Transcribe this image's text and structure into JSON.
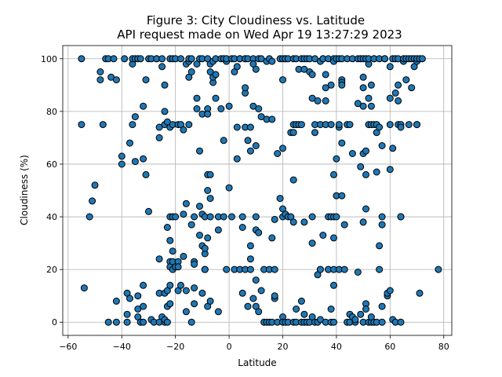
{
  "chart_data": {
    "type": "scatter",
    "title_line1": "Figure 3: City Cloudiness vs. Latitude",
    "title_line2": "API request made on Wed Apr 19 13:27:29 2023",
    "xlabel": "Latitude",
    "ylabel": "Cloudiness (%)",
    "xlim": [
      -62,
      83
    ],
    "ylim": [
      -5,
      105
    ],
    "xticks": [
      -60,
      -40,
      -20,
      0,
      20,
      40,
      60,
      80
    ],
    "yticks": [
      0,
      20,
      40,
      60,
      80,
      100
    ],
    "grid": true,
    "marker_color": "#1f77b4",
    "marker_edge": "#000000",
    "points": [
      [
        -55,
        100
      ],
      [
        -55,
        75
      ],
      [
        -54,
        13
      ],
      [
        -52,
        40
      ],
      [
        -51,
        46
      ],
      [
        -50,
        52
      ],
      [
        -48,
        92
      ],
      [
        -48,
        95
      ],
      [
        -47,
        75
      ],
      [
        -46,
        100
      ],
      [
        -45,
        100
      ],
      [
        -45,
        0
      ],
      [
        -44,
        93
      ],
      [
        -43,
        100
      ],
      [
        -42,
        92
      ],
      [
        -42,
        8
      ],
      [
        -42,
        0
      ],
      [
        -40,
        63
      ],
      [
        -40,
        60
      ],
      [
        -39,
        100
      ],
      [
        -38,
        11
      ],
      [
        -38,
        3
      ],
      [
        -38,
        0
      ],
      [
        -37,
        68
      ],
      [
        -37,
        9
      ],
      [
        -36,
        98
      ],
      [
        -36,
        75
      ],
      [
        -36,
        100
      ],
      [
        -35,
        61
      ],
      [
        -35,
        78
      ],
      [
        -35,
        100
      ],
      [
        -34,
        100
      ],
      [
        -34,
        10
      ],
      [
        -34,
        5
      ],
      [
        -34,
        2
      ],
      [
        -33,
        0
      ],
      [
        -33,
        100
      ],
      [
        -32,
        82
      ],
      [
        -32,
        62
      ],
      [
        -32,
        14
      ],
      [
        -32,
        6
      ],
      [
        -32,
        0
      ],
      [
        -31,
        92
      ],
      [
        -31,
        56
      ],
      [
        -30,
        100
      ],
      [
        -30,
        42
      ],
      [
        -29,
        100
      ],
      [
        -29,
        1
      ],
      [
        -28,
        0
      ],
      [
        -27,
        100
      ],
      [
        -27,
        100
      ],
      [
        -26,
        24
      ],
      [
        -26,
        74
      ],
      [
        -26,
        70
      ],
      [
        -26,
        0
      ],
      [
        -26,
        11
      ],
      [
        -25,
        97
      ],
      [
        -25,
        2
      ],
      [
        -25,
        100
      ],
      [
        -24,
        90
      ],
      [
        -24,
        80
      ],
      [
        -24,
        75
      ],
      [
        -24,
        11
      ],
      [
        -24,
        0
      ],
      [
        -24,
        1
      ],
      [
        -23,
        76
      ],
      [
        -23,
        36
      ],
      [
        -23,
        12
      ],
      [
        -23,
        6
      ],
      [
        -23,
        0
      ],
      [
        -22,
        100
      ],
      [
        -22,
        74
      ],
      [
        -22,
        40
      ],
      [
        -22,
        31
      ],
      [
        -22,
        23
      ],
      [
        -22,
        21
      ],
      [
        -22,
        7
      ],
      [
        -22,
        14
      ],
      [
        -21,
        100
      ],
      [
        -21,
        75
      ],
      [
        -21,
        20
      ],
      [
        -21,
        23
      ],
      [
        -21,
        40
      ],
      [
        -21,
        27
      ],
      [
        -20,
        21
      ],
      [
        -20,
        100
      ],
      [
        -20,
        40
      ],
      [
        -19,
        75
      ],
      [
        -19,
        23
      ],
      [
        -19,
        12
      ],
      [
        -19,
        21
      ],
      [
        -18,
        75
      ],
      [
        -18,
        100
      ],
      [
        -18,
        14
      ],
      [
        -17,
        73
      ],
      [
        -17,
        25
      ],
      [
        -17,
        41
      ],
      [
        -16,
        98
      ],
      [
        -16,
        45
      ],
      [
        -16,
        12
      ],
      [
        -16,
        4
      ],
      [
        -15,
        99
      ],
      [
        -15,
        100
      ],
      [
        -15,
        93
      ],
      [
        -15,
        75
      ],
      [
        -14,
        0
      ],
      [
        -14,
        95
      ],
      [
        -14,
        100
      ],
      [
        -14,
        37
      ],
      [
        -13,
        13
      ],
      [
        -13,
        23
      ],
      [
        -13,
        40
      ],
      [
        -13,
        7
      ],
      [
        -13,
        22
      ],
      [
        -12,
        98
      ],
      [
        -12,
        81
      ],
      [
        -12,
        85
      ],
      [
        -11,
        65
      ],
      [
        -11,
        100
      ],
      [
        -11,
        44
      ],
      [
        -11,
        33
      ],
      [
        -10,
        29
      ],
      [
        -10,
        11
      ],
      [
        -10,
        79
      ],
      [
        -10,
        41
      ],
      [
        -10,
        100
      ],
      [
        -9,
        20
      ],
      [
        -9,
        40
      ],
      [
        -9,
        26
      ],
      [
        -9,
        28
      ],
      [
        -9,
        20
      ],
      [
        -8,
        56
      ],
      [
        -8,
        50
      ],
      [
        -8,
        81
      ],
      [
        -8,
        79
      ],
      [
        -8,
        32
      ],
      [
        -8,
        6
      ],
      [
        -8,
        100
      ],
      [
        -7,
        98
      ],
      [
        -7,
        95
      ],
      [
        -7,
        40
      ],
      [
        -7,
        8
      ],
      [
        -7,
        56
      ],
      [
        -7,
        47
      ],
      [
        -6,
        91
      ],
      [
        -6,
        93
      ],
      [
        -6,
        99
      ],
      [
        -5,
        94
      ],
      [
        -5,
        85
      ],
      [
        -5,
        100
      ],
      [
        -4,
        35
      ],
      [
        -4,
        4
      ],
      [
        -4,
        40
      ],
      [
        -3,
        81
      ],
      [
        -3,
        100
      ],
      [
        -2,
        69
      ],
      [
        -2,
        40
      ],
      [
        -2,
        100
      ],
      [
        -1,
        20
      ],
      [
        -1,
        99
      ],
      [
        -1,
        100
      ],
      [
        0,
        51
      ],
      [
        0,
        82
      ],
      [
        1,
        100
      ],
      [
        1,
        40
      ],
      [
        2,
        20
      ],
      [
        2,
        100
      ],
      [
        2,
        95
      ],
      [
        3,
        97
      ],
      [
        3,
        74
      ],
      [
        3,
        62
      ],
      [
        4,
        20
      ],
      [
        4,
        100
      ],
      [
        4,
        100
      ],
      [
        5,
        40
      ],
      [
        5,
        36
      ],
      [
        5,
        11
      ],
      [
        6,
        100
      ],
      [
        6,
        87
      ],
      [
        6,
        74
      ],
      [
        6,
        20
      ],
      [
        6,
        89
      ],
      [
        6,
        100
      ],
      [
        7,
        69
      ],
      [
        7,
        6
      ],
      [
        7,
        100
      ],
      [
        8,
        74
      ],
      [
        8,
        65
      ],
      [
        8,
        29
      ],
      [
        8,
        24
      ],
      [
        8,
        20
      ],
      [
        9,
        9
      ],
      [
        9,
        82
      ],
      [
        9,
        100
      ],
      [
        9,
        98
      ],
      [
        10,
        67
      ],
      [
        10,
        96
      ],
      [
        10,
        40
      ],
      [
        10,
        35
      ],
      [
        10,
        16
      ],
      [
        10,
        6
      ],
      [
        11,
        4
      ],
      [
        11,
        81
      ],
      [
        11,
        34
      ],
      [
        11,
        100
      ],
      [
        12,
        78
      ],
      [
        12,
        12
      ],
      [
        12,
        100
      ],
      [
        13,
        20
      ],
      [
        13,
        0
      ],
      [
        14,
        0
      ],
      [
        14,
        77
      ],
      [
        14,
        99
      ],
      [
        15,
        20
      ],
      [
        15,
        0
      ],
      [
        15,
        100
      ],
      [
        16,
        77
      ],
      [
        16,
        99
      ],
      [
        16,
        32
      ],
      [
        16,
        0
      ],
      [
        17,
        20
      ],
      [
        17,
        39
      ],
      [
        17,
        9
      ],
      [
        17,
        10
      ],
      [
        18,
        64
      ],
      [
        18,
        0
      ],
      [
        19,
        100
      ],
      [
        19,
        47
      ],
      [
        20,
        66
      ],
      [
        20,
        100
      ],
      [
        20,
        43
      ],
      [
        20,
        92
      ],
      [
        20,
        40
      ],
      [
        20,
        2
      ],
      [
        20,
        0
      ],
      [
        21,
        100
      ],
      [
        21,
        41
      ],
      [
        21,
        100
      ],
      [
        21,
        0
      ],
      [
        22,
        40
      ],
      [
        22,
        100
      ],
      [
        22,
        0
      ],
      [
        23,
        40
      ],
      [
        23,
        72
      ],
      [
        24,
        72
      ],
      [
        24,
        54
      ],
      [
        24,
        75
      ],
      [
        24,
        0
      ],
      [
        24,
        100
      ],
      [
        24,
        38
      ],
      [
        25,
        75
      ],
      [
        25,
        100
      ],
      [
        25,
        5
      ],
      [
        25,
        0
      ],
      [
        26,
        75
      ],
      [
        26,
        96
      ],
      [
        27,
        75
      ],
      [
        27,
        8
      ],
      [
        27,
        100
      ],
      [
        27,
        0
      ],
      [
        28,
        100
      ],
      [
        28,
        3
      ],
      [
        28,
        96
      ],
      [
        28,
        38
      ],
      [
        28,
        0
      ],
      [
        29,
        100
      ],
      [
        29,
        0
      ],
      [
        30,
        95
      ],
      [
        30,
        100
      ],
      [
        30,
        0
      ],
      [
        31,
        94
      ],
      [
        31,
        40
      ],
      [
        31,
        85
      ],
      [
        31,
        30
      ],
      [
        31,
        2
      ],
      [
        32,
        100
      ],
      [
        32,
        75
      ],
      [
        32,
        72
      ],
      [
        32,
        0
      ],
      [
        33,
        0
      ],
      [
        33,
        18
      ],
      [
        33,
        84
      ],
      [
        34,
        99
      ],
      [
        34,
        20
      ],
      [
        34,
        20
      ],
      [
        34,
        75
      ],
      [
        34,
        1
      ],
      [
        35,
        100
      ],
      [
        35,
        33
      ],
      [
        35,
        100
      ],
      [
        36,
        84
      ],
      [
        36,
        94
      ],
      [
        36,
        89
      ],
      [
        36,
        75
      ],
      [
        36,
        0
      ],
      [
        37,
        100
      ],
      [
        37,
        40
      ],
      [
        37,
        20
      ],
      [
        37,
        20
      ],
      [
        38,
        90
      ],
      [
        38,
        75
      ],
      [
        38,
        5
      ],
      [
        38,
        0
      ],
      [
        38,
        40
      ],
      [
        39,
        100
      ],
      [
        39,
        99
      ],
      [
        39,
        56
      ],
      [
        39,
        40
      ],
      [
        39,
        32
      ],
      [
        39,
        20
      ],
      [
        39,
        14
      ],
      [
        39,
        0
      ],
      [
        40,
        100
      ],
      [
        40,
        40
      ],
      [
        40,
        62
      ],
      [
        40,
        48
      ],
      [
        41,
        100
      ],
      [
        41,
        20
      ],
      [
        41,
        74
      ],
      [
        41,
        75
      ],
      [
        42,
        68
      ],
      [
        42,
        48
      ],
      [
        42,
        100
      ],
      [
        42,
        92
      ],
      [
        42,
        91
      ],
      [
        42,
        90
      ],
      [
        43,
        37
      ],
      [
        43,
        20
      ],
      [
        44,
        100
      ],
      [
        44,
        0
      ],
      [
        44,
        75
      ],
      [
        45,
        75
      ],
      [
        45,
        0
      ],
      [
        45,
        3
      ],
      [
        46,
        64
      ],
      [
        46,
        100
      ],
      [
        46,
        2
      ],
      [
        47,
        0
      ],
      [
        47,
        1
      ],
      [
        48,
        83
      ],
      [
        48,
        19
      ],
      [
        48,
        100
      ],
      [
        49,
        59
      ],
      [
        49,
        100
      ],
      [
        49,
        3
      ],
      [
        50,
        64
      ],
      [
        50,
        82
      ],
      [
        50,
        89
      ],
      [
        50,
        93
      ],
      [
        50,
        0
      ],
      [
        50,
        100
      ],
      [
        50,
        38
      ],
      [
        51,
        65
      ],
      [
        51,
        56
      ],
      [
        51,
        7
      ],
      [
        51,
        5
      ],
      [
        51,
        100
      ],
      [
        51,
        43
      ],
      [
        52,
        75
      ],
      [
        52,
        85
      ],
      [
        52,
        98
      ],
      [
        52,
        0
      ],
      [
        52,
        100
      ],
      [
        53,
        75
      ],
      [
        53,
        82
      ],
      [
        53,
        90
      ],
      [
        53,
        0
      ],
      [
        53,
        2
      ],
      [
        54,
        100
      ],
      [
        54,
        100
      ],
      [
        54,
        75
      ],
      [
        54,
        0
      ],
      [
        55,
        75
      ],
      [
        55,
        72
      ],
      [
        55,
        57
      ],
      [
        55,
        0
      ],
      [
        56,
        100
      ],
      [
        56,
        74
      ],
      [
        56,
        29
      ],
      [
        56,
        20
      ],
      [
        57,
        67
      ],
      [
        57,
        40
      ],
      [
        57,
        37
      ],
      [
        57,
        6
      ],
      [
        57,
        0
      ],
      [
        58,
        100
      ],
      [
        58,
        100
      ],
      [
        59,
        10
      ],
      [
        59,
        11
      ],
      [
        60,
        97
      ],
      [
        60,
        85
      ],
      [
        60,
        75
      ],
      [
        60,
        58
      ],
      [
        60,
        12
      ],
      [
        61,
        66
      ],
      [
        61,
        100
      ],
      [
        61,
        1
      ],
      [
        62,
        100
      ],
      [
        62,
        87
      ],
      [
        62,
        0
      ],
      [
        63,
        90
      ],
      [
        63,
        84
      ],
      [
        63,
        75
      ],
      [
        63,
        100
      ],
      [
        64,
        75
      ],
      [
        64,
        74
      ],
      [
        64,
        40
      ],
      [
        64,
        40
      ],
      [
        64,
        0
      ],
      [
        65,
        99
      ],
      [
        65,
        100
      ],
      [
        66,
        92
      ],
      [
        66,
        100
      ],
      [
        67,
        75
      ],
      [
        67,
        100
      ],
      [
        68,
        89
      ],
      [
        68,
        100
      ],
      [
        69,
        97
      ],
      [
        69,
        100
      ],
      [
        70,
        75
      ],
      [
        70,
        99
      ],
      [
        70,
        75
      ],
      [
        70,
        100
      ],
      [
        71,
        100
      ],
      [
        71,
        11
      ],
      [
        72,
        100
      ],
      [
        78,
        20
      ]
    ]
  }
}
